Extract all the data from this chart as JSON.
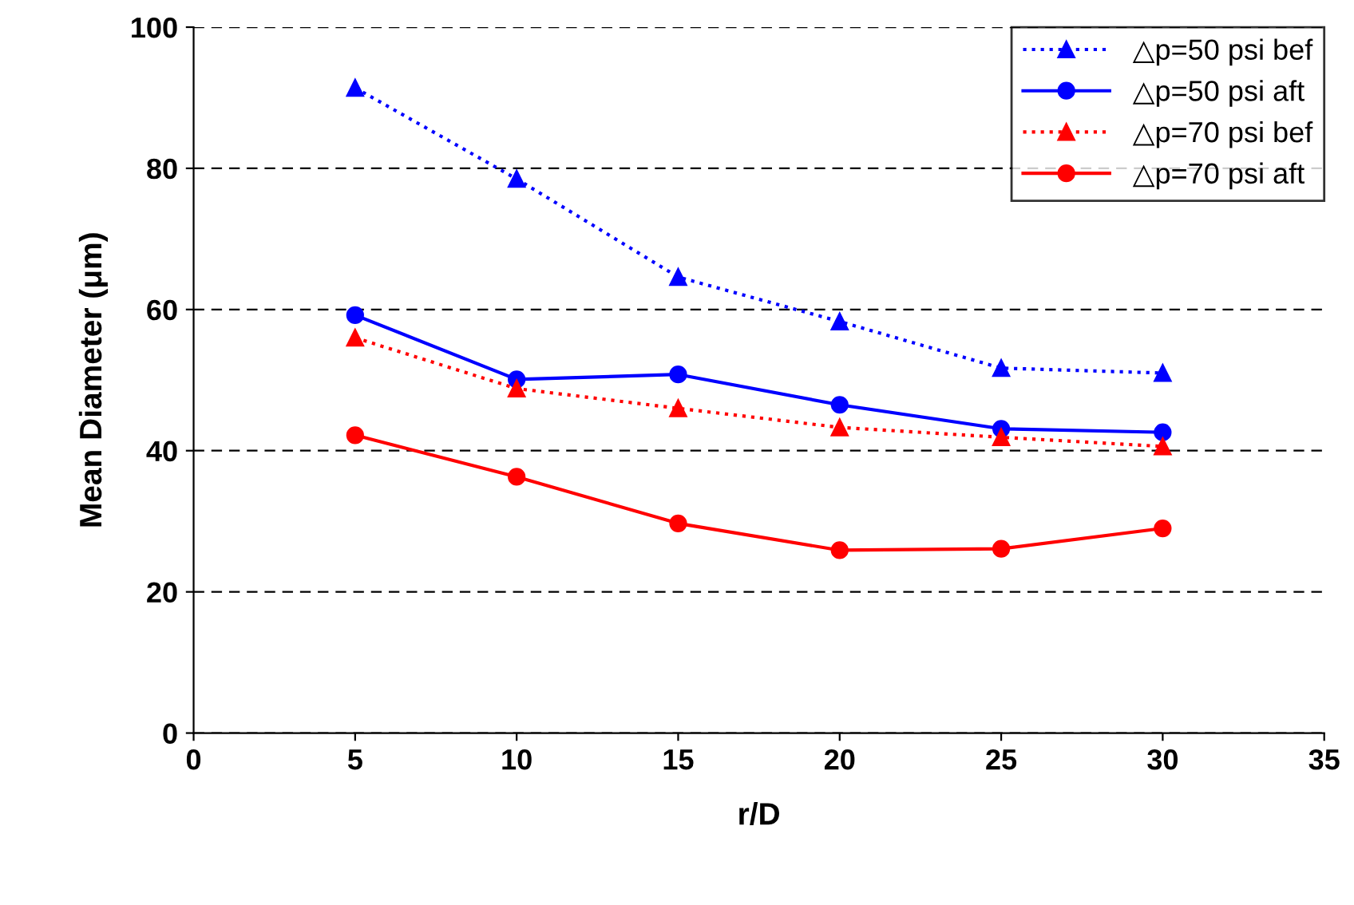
{
  "chart_data": {
    "type": "line",
    "xlabel": "r/D",
    "ylabel": "Mean Diameter (μm)",
    "x": [
      5,
      10,
      15,
      20,
      25,
      30
    ],
    "xlim": [
      0,
      35
    ],
    "xticks": [
      0,
      5,
      10,
      15,
      20,
      25,
      30,
      35
    ],
    "ylim": [
      0,
      100
    ],
    "yticks": [
      0,
      20,
      40,
      60,
      80,
      100
    ],
    "grid": "y",
    "legend": "top right",
    "series": [
      {
        "name": "△p=50 psi bef",
        "color": "#0000ff",
        "marker": "triangle",
        "line_style": "dotted",
        "values": [
          91.4,
          78.5,
          64.6,
          58.3,
          51.7,
          51.0
        ]
      },
      {
        "name": "△p=50 psi aft",
        "color": "#0000ff",
        "marker": "circle",
        "line_style": "solid",
        "values": [
          59.2,
          50.1,
          50.8,
          46.5,
          43.1,
          42.6
        ]
      },
      {
        "name": "△p=70 psi bef",
        "color": "#ff0000",
        "marker": "triangle",
        "line_style": "dotted",
        "values": [
          56.0,
          48.8,
          46.0,
          43.3,
          41.9,
          40.6
        ]
      },
      {
        "name": "△p=70 psi aft",
        "color": "#ff0000",
        "marker": "circle",
        "line_style": "solid",
        "values": [
          42.2,
          36.3,
          29.7,
          25.9,
          26.1,
          29.0
        ]
      }
    ]
  }
}
